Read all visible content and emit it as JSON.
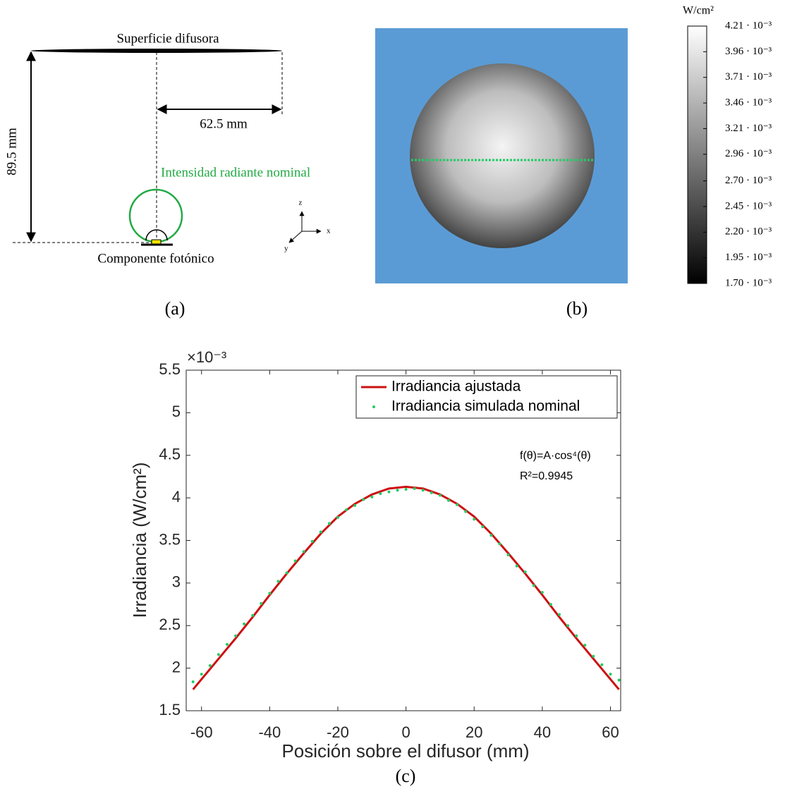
{
  "panel_a": {
    "caption": "(a)",
    "surface_label": "Superficie difusora",
    "width_label": "62.5 mm",
    "height_label": "89.5 mm",
    "intensity_label": "Intensidad radiante nominal",
    "component_label": "Componente fotónico",
    "axes": {
      "z": "z",
      "x": "x",
      "y": "y"
    }
  },
  "panel_b": {
    "caption": "(b)",
    "colorbar": {
      "label": "W/cm²",
      "clim": [
        0.0017,
        0.00421
      ],
      "ticks": [
        {
          "value": 0.00421,
          "label": "4.21 · 10⁻³"
        },
        {
          "value": 0.00396,
          "label": "3.96 · 10⁻³"
        },
        {
          "value": 0.00371,
          "label": "3.71 · 10⁻³"
        },
        {
          "value": 0.00346,
          "label": "3.46 · 10⁻³"
        },
        {
          "value": 0.00321,
          "label": "3.21 · 10⁻³"
        },
        {
          "value": 0.00296,
          "label": "2.96 · 10⁻³"
        },
        {
          "value": 0.0027,
          "label": "2.70 · 10⁻³"
        },
        {
          "value": 0.00245,
          "label": "2.45 · 10⁻³"
        },
        {
          "value": 0.0022,
          "label": "2.20 · 10⁻³"
        },
        {
          "value": 0.00195,
          "label": "1.95 · 10⁻³"
        },
        {
          "value": 0.0017,
          "label": "1.70 · 10⁻³"
        }
      ]
    }
  },
  "chart_data": {
    "type": "line",
    "caption": "(c)",
    "xlabel": "Posición sobre el difusor (mm)",
    "ylabel": "Irradiancia (W/cm²)",
    "y_multiplier": "×10⁻³",
    "xlim": [
      -64.5,
      63
    ],
    "xticks": [
      -60,
      -40,
      -20,
      0,
      20,
      40,
      60
    ],
    "ylim": [
      1.5,
      5.5
    ],
    "yticks": [
      1.5,
      2,
      2.5,
      3,
      3.5,
      4,
      4.5,
      5,
      5.5
    ],
    "legend": "upper right",
    "annotations": [
      "f(θ)=A·cos⁴(θ)",
      "R²=0.9945"
    ],
    "series": [
      {
        "name": "Irradiancia ajustada",
        "type": "line",
        "color": "#cc1111",
        "x": [
          -62.5,
          -60,
          -55,
          -50,
          -45,
          -40,
          -35,
          -30,
          -25,
          -20,
          -15,
          -10,
          -5,
          0,
          5,
          10,
          15,
          20,
          25,
          30,
          35,
          40,
          45,
          50,
          55,
          60,
          62.5
        ],
        "values": [
          1.75,
          1.87,
          2.11,
          2.35,
          2.6,
          2.86,
          3.11,
          3.35,
          3.58,
          3.78,
          3.93,
          4.04,
          4.11,
          4.13,
          4.11,
          4.04,
          3.93,
          3.78,
          3.58,
          3.35,
          3.11,
          2.86,
          2.6,
          2.35,
          2.11,
          1.87,
          1.75
        ]
      },
      {
        "name": "Irradiancia simulada nominal",
        "type": "scatter",
        "color": "#22cc66",
        "x": [
          -62.5,
          -60,
          -57.5,
          -55,
          -52.5,
          -50,
          -47.5,
          -45,
          -42.5,
          -40,
          -37.5,
          -35,
          -32.5,
          -30,
          -27.5,
          -25,
          -22.5,
          -20,
          -17.5,
          -15,
          -12.5,
          -10,
          -7.5,
          -5,
          -2.5,
          0,
          2.5,
          5,
          7.5,
          10,
          12.5,
          15,
          17.5,
          20,
          22.5,
          25,
          27.5,
          30,
          32.5,
          35,
          37.5,
          40,
          42.5,
          45,
          47.5,
          50,
          52.5,
          55,
          57.5,
          60,
          62.5
        ],
        "values": [
          1.84,
          1.93,
          2.03,
          2.16,
          2.28,
          2.38,
          2.52,
          2.62,
          2.76,
          2.88,
          3.02,
          3.12,
          3.26,
          3.37,
          3.49,
          3.6,
          3.7,
          3.77,
          3.86,
          3.91,
          3.98,
          4.01,
          4.05,
          4.07,
          4.09,
          4.1,
          4.11,
          4.09,
          4.06,
          4.03,
          3.97,
          3.92,
          3.84,
          3.75,
          3.66,
          3.56,
          3.46,
          3.33,
          3.2,
          3.13,
          2.97,
          2.89,
          2.75,
          2.63,
          2.5,
          2.38,
          2.27,
          2.14,
          2.04,
          1.93,
          1.86
        ]
      }
    ]
  }
}
